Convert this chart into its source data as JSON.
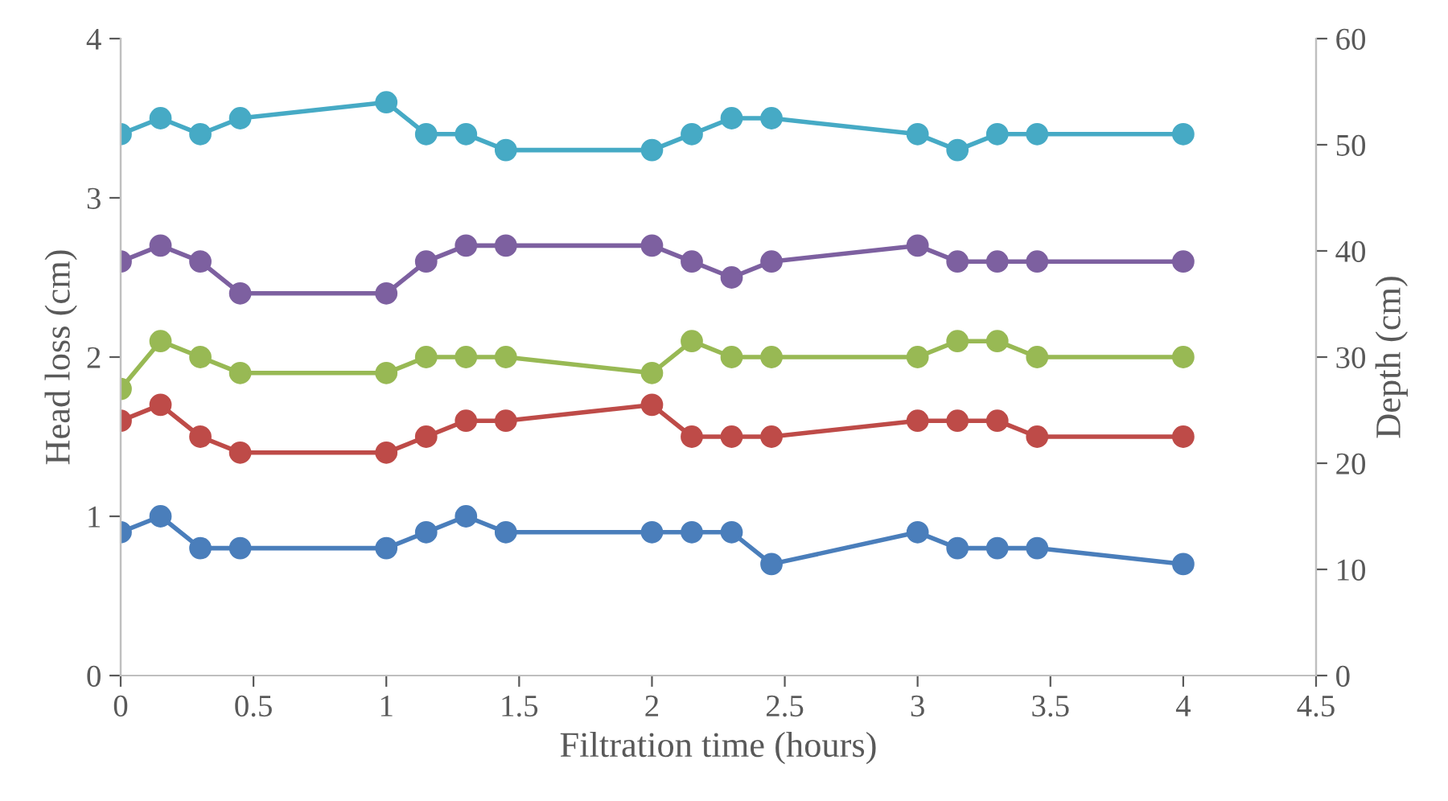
{
  "chart_data": {
    "type": "line",
    "xlabel": "Filtration time (hours)",
    "ylabel": "Head loss (cm)",
    "y2label": "Depth (cm)",
    "x": [
      0,
      0.15,
      0.3,
      0.45,
      1,
      1.15,
      1.3,
      1.45,
      2,
      2.15,
      2.3,
      2.45,
      3,
      3.15,
      3.3,
      3.45,
      4
    ],
    "series": [
      {
        "color": "#4a7ebb",
        "values": [
          0.9,
          1.0,
          0.8,
          0.8,
          0.8,
          0.9,
          1.0,
          0.9,
          0.9,
          0.9,
          0.9,
          0.7,
          0.9,
          0.8,
          0.8,
          0.8,
          0.7
        ]
      },
      {
        "color": "#be4b48",
        "values": [
          1.6,
          1.7,
          1.5,
          1.4,
          1.4,
          1.5,
          1.6,
          1.6,
          1.7,
          1.5,
          1.5,
          1.5,
          1.6,
          1.6,
          1.6,
          1.5,
          1.5
        ]
      },
      {
        "color": "#98b954",
        "values": [
          1.8,
          2.1,
          2.0,
          1.9,
          1.9,
          2.0,
          2.0,
          2.0,
          1.9,
          2.1,
          2.0,
          2.0,
          2.0,
          2.1,
          2.1,
          2.0,
          2.0
        ]
      },
      {
        "color": "#7d60a0",
        "values": [
          2.6,
          2.7,
          2.6,
          2.4,
          2.4,
          2.6,
          2.7,
          2.7,
          2.7,
          2.6,
          2.5,
          2.6,
          2.7,
          2.6,
          2.6,
          2.6,
          2.6
        ]
      },
      {
        "color": "#46aac5",
        "values": [
          3.4,
          3.5,
          3.4,
          3.5,
          3.6,
          3.4,
          3.4,
          3.3,
          3.3,
          3.4,
          3.5,
          3.5,
          3.4,
          3.3,
          3.4,
          3.4,
          3.4
        ]
      }
    ],
    "xlim": [
      0,
      4.5
    ],
    "xticks": [
      0,
      0.5,
      1,
      1.5,
      2,
      2.5,
      3,
      3.5,
      4,
      4.5
    ],
    "ylim": [
      0,
      4
    ],
    "yticks": [
      0,
      1,
      2,
      3,
      4
    ],
    "y2lim": [
      0,
      60
    ],
    "y2ticks": [
      0,
      10,
      20,
      30,
      40,
      50,
      60
    ],
    "marker": "circle",
    "line_style": "solid",
    "grid": false,
    "legend": false
  }
}
